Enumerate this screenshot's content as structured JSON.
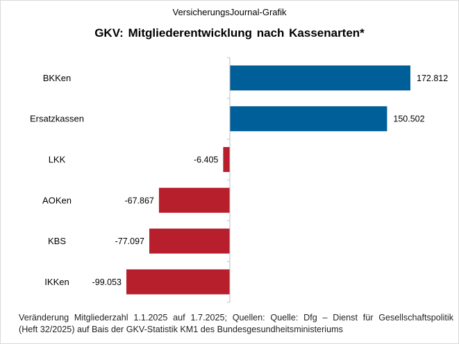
{
  "header": {
    "source_label": "VersicherungsJournal-Grafik",
    "title": "GKV: Mitgliederentwicklung  nach Kassenarten*"
  },
  "footnote": {
    "line1": "Veränderung Mitgliederzahl 1.1.2025 auf 1.7.2025; Quellen: Quelle: Dfg – Dienst für Gesellschaftspolitik",
    "line2": "(Heft 32/2025)  auf Bais der GKV-Statistik KM1 des Bundesgesundheitsministeriums"
  },
  "colors": {
    "positive": "#005f99",
    "negative": "#b81f2d"
  },
  "chart_data": {
    "type": "bar",
    "orientation": "horizontal",
    "title": "GKV: Mitgliederentwicklung  nach Kassenarten*",
    "categories": [
      "BKKen",
      "Ersatzkassen",
      "LKK",
      "AOKen",
      "KBS",
      "IKKen"
    ],
    "values": [
      172812,
      150502,
      -6405,
      -67867,
      -77097,
      -99053
    ],
    "value_labels": [
      "172.812",
      "150.502",
      "-6.405",
      "-67.867",
      "-77.097",
      "-99.053"
    ],
    "xlim": [
      -112000,
      178000
    ],
    "grid": false,
    "legend": "none"
  }
}
